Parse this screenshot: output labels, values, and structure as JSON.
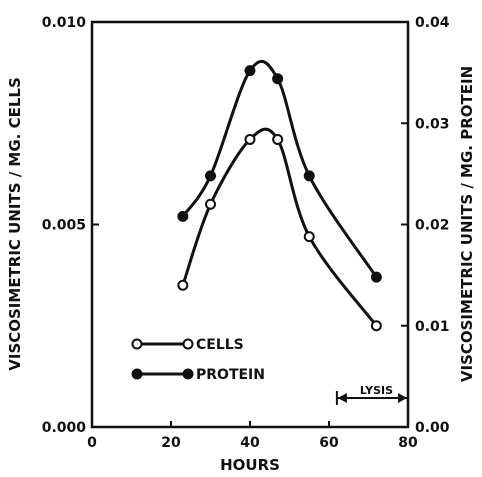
{
  "chart_data": {
    "type": "line",
    "xlabel": "HOURS",
    "ylabel_left": "VISCOSIMETRIC UNITS / MG. CELLS",
    "ylabel_right": "VISCOSIMETRIC UNITS / MG. PROTEIN",
    "xlim": [
      0,
      80
    ],
    "ylim_left": [
      0,
      0.01
    ],
    "ylim_right": [
      0,
      0.04
    ],
    "x_ticks": [
      "0",
      "20",
      "40",
      "60",
      "80"
    ],
    "y_left_ticks": [
      "0.000",
      "0.005",
      "0.010"
    ],
    "y_right_ticks": [
      "0.00",
      "0.01",
      "0.02",
      "0.03",
      "0.04"
    ],
    "grid": false,
    "legend_position": "lower-left",
    "series": [
      {
        "name": "CELLS",
        "marker": "open-circle",
        "axis": "left",
        "x": [
          23,
          30,
          40,
          47,
          55,
          72
        ],
        "y": [
          0.0035,
          0.0055,
          0.0071,
          0.0071,
          0.0047,
          0.0025
        ]
      },
      {
        "name": "PROTEIN",
        "marker": "filled-circle",
        "axis": "left",
        "x": [
          23,
          30,
          40,
          47,
          55,
          72
        ],
        "y": [
          0.0052,
          0.0062,
          0.0088,
          0.0086,
          0.0062,
          0.0037
        ]
      }
    ],
    "annotations": [
      {
        "text": "LYSIS",
        "x_range": [
          62,
          80
        ]
      }
    ]
  }
}
